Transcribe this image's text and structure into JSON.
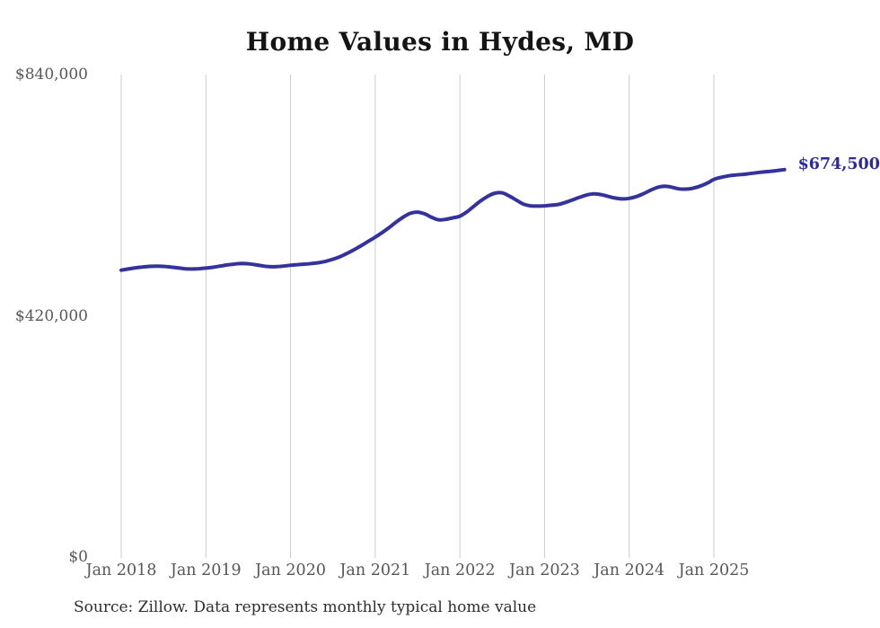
{
  "chart": {
    "title": "Home Values in Hydes, MD",
    "end_label": "$674,500",
    "source": "Source: Zillow. Data represents monthly typical home value"
  },
  "chart_data": {
    "type": "line",
    "title": "Home Values in Hydes, MD",
    "xlabel": "",
    "ylabel": "",
    "ylim": [
      0,
      840000
    ],
    "grid": "vertical",
    "legend": "none",
    "line_color": "#36329d",
    "grid_color": "#cbcbcb",
    "x_ticks": [
      "Jan 2018",
      "Jan 2019",
      "Jan 2020",
      "Jan 2021",
      "Jan 2022",
      "Jan 2023",
      "Jan 2024",
      "Jan 2025"
    ],
    "y_ticks": [
      {
        "label": "$840,000",
        "value": 840000
      },
      {
        "label": "$420,000",
        "value": 420000
      },
      {
        "label": "$0",
        "value": 0
      }
    ],
    "latest": {
      "label": "$674,500",
      "value": 674500
    },
    "series": [
      {
        "name": "Monthly typical home value",
        "start_month": "Jan 2018",
        "frequency": "monthly",
        "values": [
          499500,
          501500,
          503500,
          505000,
          506000,
          506500,
          506000,
          505000,
          503500,
          502000,
          501500,
          502000,
          503000,
          504500,
          506500,
          508500,
          510000,
          511000,
          510500,
          509000,
          507000,
          505500,
          505500,
          506500,
          508000,
          509000,
          510000,
          511000,
          512500,
          515000,
          518500,
          523000,
          528500,
          535000,
          542000,
          549500,
          557000,
          565000,
          574000,
          583500,
          592000,
          598500,
          600500,
          597500,
          591500,
          587000,
          588000,
          590500,
          593500,
          601000,
          611000,
          620500,
          628500,
          633500,
          634000,
          628500,
          621500,
          614500,
          611500,
          611000,
          611500,
          612500,
          614000,
          617500,
          622000,
          626500,
          630500,
          632500,
          631000,
          628000,
          625000,
          623500,
          624500,
          627500,
          632500,
          638500,
          643500,
          645500,
          644000,
          641000,
          640500,
          642000,
          645500,
          650500,
          657500,
          661000,
          663500,
          665000,
          666000,
          667500,
          669000,
          670500,
          671500,
          673000,
          674500
        ]
      }
    ]
  }
}
